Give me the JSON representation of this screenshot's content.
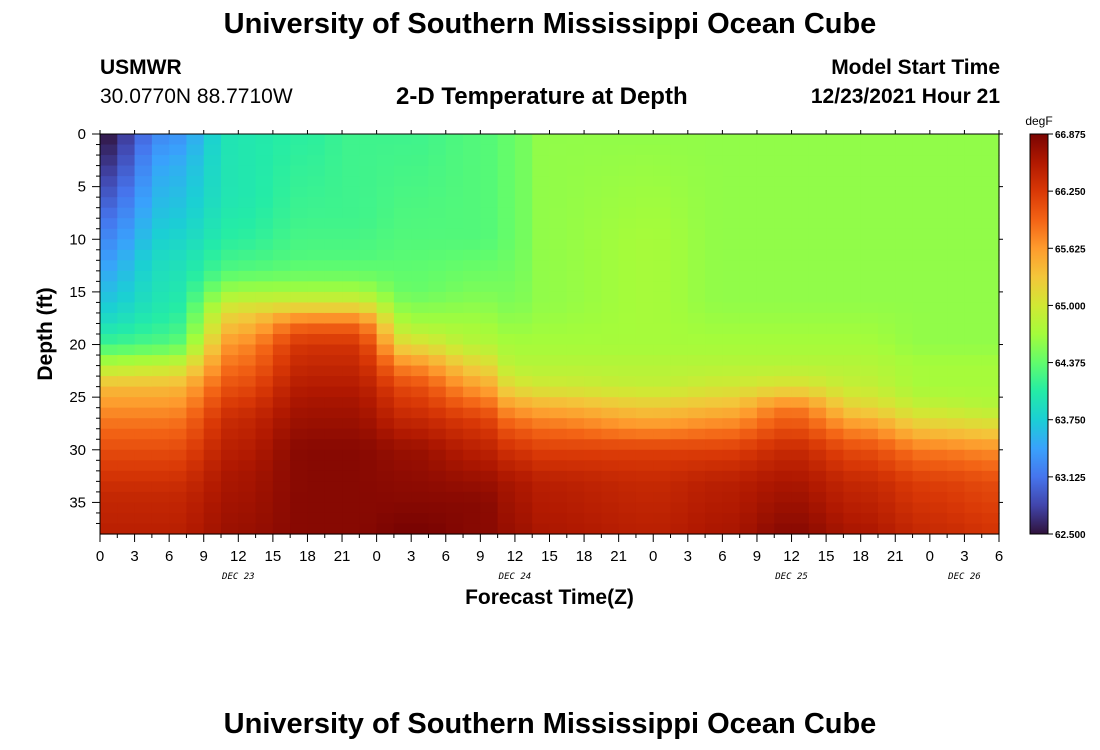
{
  "header": {
    "main_title": "University of Southern Mississippi Ocean Cube",
    "station_id": "USMWR",
    "station_coords": "30.0770N  88.7710W",
    "chart_title": "2-D Temperature at Depth",
    "model_start_label": "Model Start Time",
    "model_start_value": "12/23/2021 Hour 21"
  },
  "footer": {
    "title": "University of Southern Mississippi Ocean Cube"
  },
  "chart_data": {
    "type": "heatmap",
    "title": "2-D Temperature at Depth",
    "xlabel": "Forecast Time(Z)",
    "ylabel": "Depth (ft)",
    "x_tick_labels": [
      "0",
      "3",
      "6",
      "9",
      "12",
      "15",
      "18",
      "21",
      "0",
      "3",
      "6",
      "9",
      "12",
      "15",
      "18",
      "21",
      "0",
      "3",
      "6",
      "9",
      "12",
      "15",
      "18",
      "21",
      "0",
      "3",
      "6"
    ],
    "x_range_hours": [
      0,
      78
    ],
    "day_labels": [
      {
        "text": "DEC 23",
        "hour": 12
      },
      {
        "text": "DEC 24",
        "hour": 36
      },
      {
        "text": "DEC 25",
        "hour": 60
      },
      {
        "text": "DEC 26",
        "hour": 75
      }
    ],
    "y_ticks": [
      0,
      5,
      10,
      15,
      20,
      25,
      30,
      35
    ],
    "ylim": [
      0,
      38
    ],
    "y_inverted": true,
    "colorbar": {
      "unit": "degF",
      "min": 62.5,
      "max": 66.875,
      "tick_labels": [
        "66.875",
        "66.250",
        "65.625",
        "65.000",
        "64.375",
        "63.750",
        "63.125",
        "62.500"
      ],
      "colors": [
        "#30123b",
        "#4145ab",
        "#4675ed",
        "#39a2fc",
        "#1bcfd4",
        "#24eca6",
        "#61fc6c",
        "#a4fc3b",
        "#d1e834",
        "#f3c63a",
        "#fe9b2d",
        "#f36315",
        "#d93806",
        "#b11901",
        "#7a0402"
      ]
    },
    "grid": false,
    "hour_step": 1.5,
    "depth_step": 1,
    "profile_keyframes": [
      {
        "hour": 0,
        "depths": [
          0,
          3,
          8,
          12,
          16,
          18,
          20,
          22,
          24,
          27,
          30,
          34,
          38
        ],
        "temps": [
          62.5,
          62.7,
          63.1,
          63.4,
          63.7,
          63.9,
          64.2,
          64.8,
          65.4,
          65.8,
          66.1,
          66.4,
          66.5
        ]
      },
      {
        "hour": 6,
        "depths": [
          0,
          3,
          8,
          12,
          16,
          18,
          20,
          22,
          24,
          27,
          30,
          34,
          38
        ],
        "temps": [
          63.3,
          63.5,
          63.7,
          63.9,
          64.0,
          64.1,
          64.3,
          64.9,
          65.4,
          65.8,
          66.1,
          66.4,
          66.5
        ]
      },
      {
        "hour": 12,
        "depths": [
          0,
          6,
          10,
          13,
          15,
          17,
          20,
          23,
          27,
          32,
          38
        ],
        "temps": [
          64.0,
          64.0,
          64.1,
          64.3,
          64.7,
          65.2,
          65.7,
          66.0,
          66.4,
          66.6,
          66.7
        ]
      },
      {
        "hour": 18,
        "depths": [
          0,
          8,
          12,
          14,
          16,
          18,
          20,
          25,
          30,
          35,
          38
        ],
        "temps": [
          64.1,
          64.2,
          64.3,
          64.5,
          65.0,
          65.9,
          66.3,
          66.6,
          66.8,
          66.8,
          66.8
        ]
      },
      {
        "hour": 22,
        "depths": [
          0,
          8,
          12,
          14,
          16,
          18,
          20,
          25,
          30,
          35,
          38
        ],
        "temps": [
          64.2,
          64.2,
          64.3,
          64.5,
          65.0,
          65.9,
          66.3,
          66.6,
          66.8,
          66.8,
          66.8
        ]
      },
      {
        "hour": 27,
        "depths": [
          0,
          10,
          15,
          18,
          20,
          22,
          24,
          27,
          30,
          35,
          38
        ],
        "temps": [
          64.2,
          64.3,
          64.4,
          64.7,
          65.1,
          65.7,
          66.1,
          66.4,
          66.7,
          66.8,
          66.9
        ]
      },
      {
        "hour": 33,
        "depths": [
          0,
          10,
          15,
          20,
          22,
          25,
          27,
          30,
          33,
          35,
          38
        ],
        "temps": [
          64.3,
          64.3,
          64.5,
          64.8,
          65.2,
          65.8,
          66.2,
          66.5,
          66.7,
          66.8,
          66.8
        ]
      },
      {
        "hour": 36,
        "depths": [
          0,
          10,
          16,
          20,
          22,
          24,
          26,
          28,
          30,
          33,
          38
        ],
        "temps": [
          64.4,
          64.4,
          64.5,
          64.7,
          64.8,
          65.1,
          65.6,
          66.0,
          66.3,
          66.6,
          66.7
        ]
      },
      {
        "hour": 38,
        "depths": [
          0,
          10,
          16,
          20,
          22,
          24,
          26,
          28,
          30,
          33,
          38
        ],
        "temps": [
          64.6,
          64.6,
          64.6,
          64.7,
          64.8,
          65.0,
          65.5,
          65.9,
          66.2,
          66.5,
          66.6
        ]
      },
      {
        "hour": 48,
        "depths": [
          0,
          10,
          16,
          20,
          22,
          24,
          26,
          28,
          30,
          33,
          38
        ],
        "temps": [
          64.6,
          64.7,
          64.7,
          64.7,
          64.8,
          64.9,
          65.3,
          65.7,
          66.2,
          66.4,
          66.5
        ]
      },
      {
        "hour": 54,
        "depths": [
          0,
          10,
          16,
          20,
          22,
          24,
          26,
          28,
          30,
          33,
          38
        ],
        "temps": [
          64.6,
          64.6,
          64.6,
          64.7,
          64.8,
          65.0,
          65.4,
          65.8,
          66.2,
          66.5,
          66.6
        ]
      },
      {
        "hour": 60,
        "depths": [
          0,
          10,
          16,
          20,
          22,
          24,
          26,
          28,
          30,
          33,
          38
        ],
        "temps": [
          64.6,
          64.6,
          64.6,
          64.7,
          64.8,
          65.1,
          65.8,
          66.1,
          66.4,
          66.6,
          66.8
        ]
      },
      {
        "hour": 66,
        "depths": [
          0,
          10,
          16,
          20,
          22,
          24,
          26,
          28,
          30,
          33,
          38
        ],
        "temps": [
          64.6,
          64.6,
          64.6,
          64.7,
          64.8,
          64.9,
          65.2,
          65.7,
          66.1,
          66.4,
          66.6
        ]
      },
      {
        "hour": 72,
        "depths": [
          0,
          10,
          16,
          20,
          22,
          24,
          26,
          28,
          30,
          33,
          38
        ],
        "temps": [
          64.6,
          64.6,
          64.6,
          64.6,
          64.7,
          64.7,
          64.9,
          65.3,
          65.8,
          66.2,
          66.4
        ]
      },
      {
        "hour": 78,
        "depths": [
          0,
          10,
          16,
          20,
          22,
          24,
          26,
          28,
          30,
          33,
          38
        ],
        "temps": [
          64.6,
          64.6,
          64.6,
          64.6,
          64.7,
          64.7,
          64.8,
          65.2,
          65.7,
          66.1,
          66.3
        ]
      }
    ]
  }
}
